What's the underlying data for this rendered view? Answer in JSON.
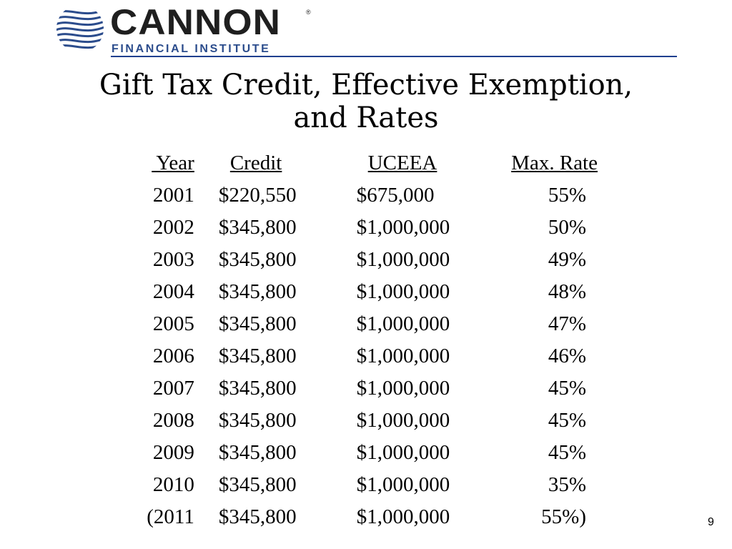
{
  "logo": {
    "wordmark": "CANNON",
    "registered_mark": "®",
    "subtitle": "FINANCIAL INSTITUTE",
    "brand_color": "#2b4c8c",
    "icon": "cannon-swirl-logo-icon"
  },
  "header_rule_color": "#1f3f8f",
  "title": {
    "line1": "Gift Tax Credit, Effective Exemption,",
    "line2": "and Rates"
  },
  "table": {
    "headers": {
      "year": " Year",
      "credit": "Credit",
      "uceea": "UCEEA",
      "max_rate": "Max. Rate"
    },
    "rows": [
      {
        "year": "2001",
        "credit": "$220,550",
        "uceea": "$675,000",
        "max_rate": "55%"
      },
      {
        "year": "2002",
        "credit": "$345,800",
        "uceea": "$1,000,000",
        "max_rate": "50%"
      },
      {
        "year": "2003",
        "credit": "$345,800",
        "uceea": "$1,000,000",
        "max_rate": "49%"
      },
      {
        "year": "2004",
        "credit": "$345,800",
        "uceea": "$1,000,000",
        "max_rate": "48%"
      },
      {
        "year": "2005",
        "credit": "$345,800",
        "uceea": "$1,000,000",
        "max_rate": "47%"
      },
      {
        "year": "2006",
        "credit": "$345,800",
        "uceea": "$1,000,000",
        "max_rate": "46%"
      },
      {
        "year": "2007",
        "credit": "$345,800",
        "uceea": "$1,000,000",
        "max_rate": "45%"
      },
      {
        "year": "2008",
        "credit": "$345,800",
        "uceea": "$1,000,000",
        "max_rate": "45%"
      },
      {
        "year": "2009",
        "credit": "$345,800",
        "uceea": "$1,000,000",
        "max_rate": "45%"
      },
      {
        "year": "2010",
        "credit": "$345,800",
        "uceea": "$1,000,000",
        "max_rate": "35%"
      },
      {
        "year": "(2011",
        "credit": "$345,800",
        "uceea": "$1,000,000",
        "max_rate": "55%)"
      }
    ]
  },
  "page_number": "9"
}
